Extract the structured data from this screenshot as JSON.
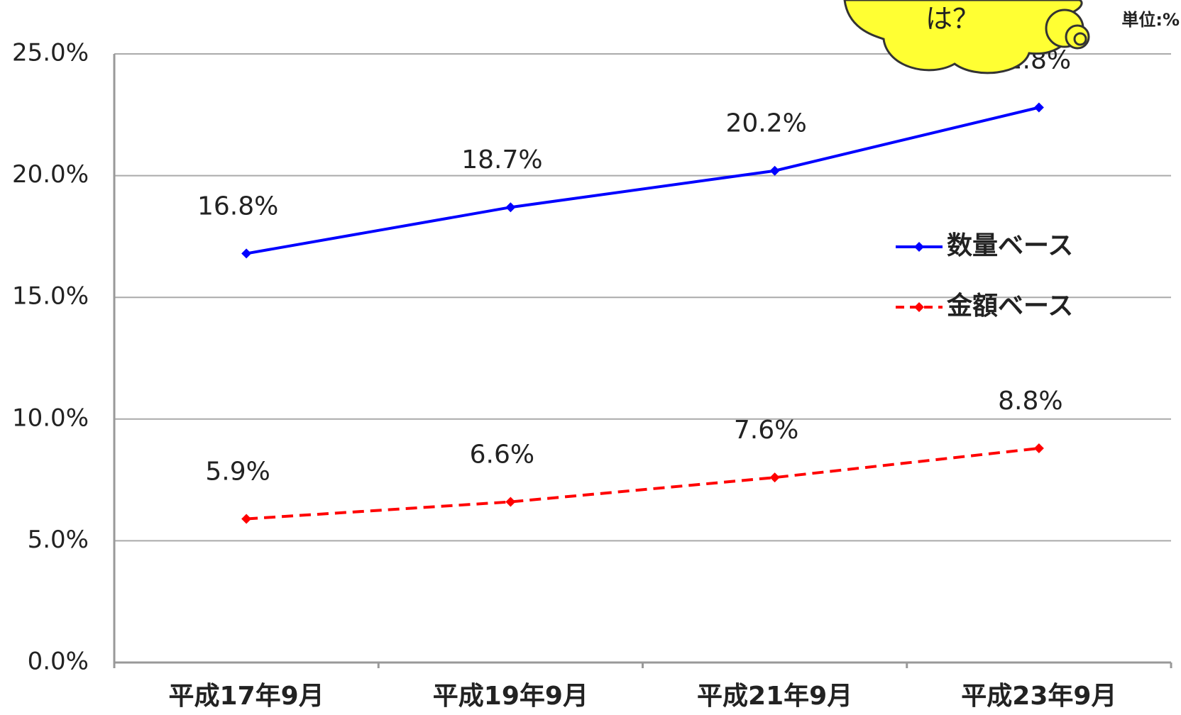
{
  "chart_data": {
    "type": "line",
    "annotations": [
      "は？",
      "単位:%"
    ],
    "categories": [
      "平成17年9月",
      "平成19年9月",
      "平成21年9月",
      "平成23年9月"
    ],
    "series": [
      {
        "name": "数量ベース",
        "color": "#0000ff",
        "dashed": false,
        "values": [
          16.8,
          18.7,
          20.2,
          22.8
        ],
        "value_labels": [
          "16.8%",
          "18.7%",
          "20.2%",
          "22.8%"
        ]
      },
      {
        "name": "金額ベース",
        "color": "#ff0000",
        "dashed": true,
        "values": [
          5.9,
          6.6,
          7.6,
          8.8
        ],
        "value_labels": [
          "5.9%",
          "6.6%",
          "7.6%",
          "8.8%"
        ]
      }
    ],
    "ylim": [
      0,
      25
    ],
    "yticks": [
      {
        "value": 0,
        "label": "0.0%"
      },
      {
        "value": 5,
        "label": "5.0%"
      },
      {
        "value": 10,
        "label": "10.0%"
      },
      {
        "value": 15,
        "label": "15.0%"
      },
      {
        "value": 20,
        "label": "20.0%"
      },
      {
        "value": 25,
        "label": "25.0%"
      }
    ],
    "grid": true,
    "legend": "right"
  }
}
